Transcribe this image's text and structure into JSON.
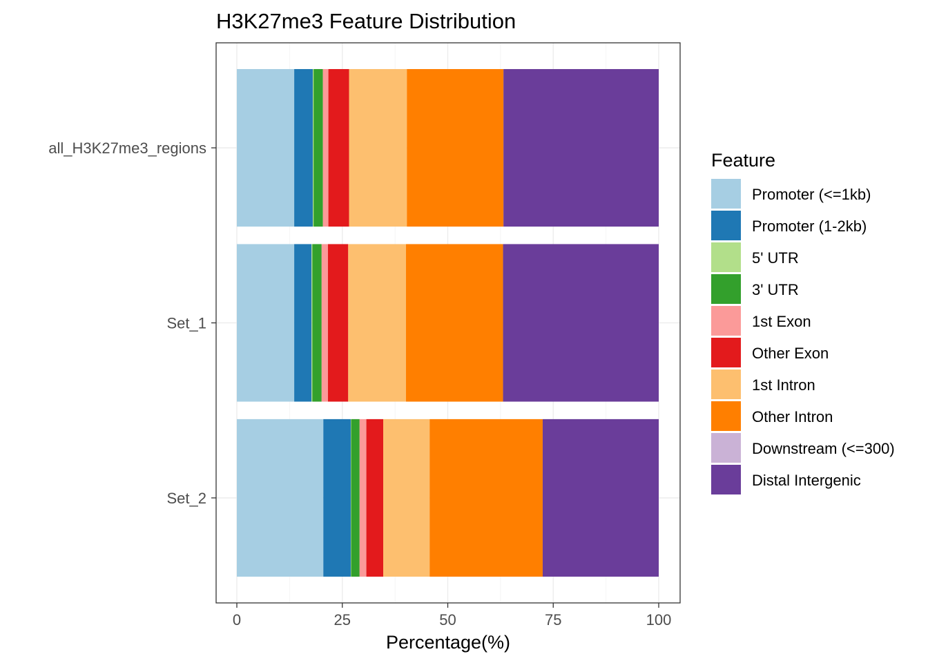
{
  "chart_data": {
    "type": "bar",
    "orientation": "horizontal",
    "stacked": true,
    "title": "H3K27me3 Feature Distribution",
    "xlabel": "Percentage(%)",
    "ylabel": "",
    "xlim": [
      0,
      100
    ],
    "x_ticks": [
      "0",
      "25",
      "50",
      "75",
      "100"
    ],
    "categories": [
      "all_H3K27me3_regions",
      "Set_1",
      "Set_2"
    ],
    "grid": true,
    "legend_position": "right",
    "legend_title": "Feature",
    "series": [
      {
        "name": "Promoter (<=1kb)",
        "color": "#A6CEE3",
        "values": [
          13.6,
          13.6,
          20.5
        ]
      },
      {
        "name": "Promoter (1-2kb)",
        "color": "#1F78B4",
        "values": [
          4.4,
          4.1,
          6.5
        ]
      },
      {
        "name": "5' UTR",
        "color": "#B2DF8A",
        "values": [
          0.2,
          0.2,
          0.1
        ]
      },
      {
        "name": "3' UTR",
        "color": "#33A02C",
        "values": [
          2.2,
          2.2,
          2.0
        ]
      },
      {
        "name": "1st Exon",
        "color": "#FB9A99",
        "values": [
          1.3,
          1.5,
          1.6
        ]
      },
      {
        "name": "Other Exon",
        "color": "#E31A1C",
        "values": [
          4.9,
          4.8,
          4.0
        ]
      },
      {
        "name": "1st Intron",
        "color": "#FDBF6F",
        "values": [
          13.7,
          13.7,
          11.0
        ]
      },
      {
        "name": "Other Intron",
        "color": "#FF7F00",
        "values": [
          22.9,
          23.0,
          26.8
        ]
      },
      {
        "name": "Downstream (<=300)",
        "color": "#CAB2D6",
        "values": [
          0.0,
          0.0,
          0.0
        ]
      },
      {
        "name": "Distal Intergenic",
        "color": "#6A3D9A",
        "values": [
          36.8,
          36.9,
          27.5
        ]
      }
    ]
  }
}
